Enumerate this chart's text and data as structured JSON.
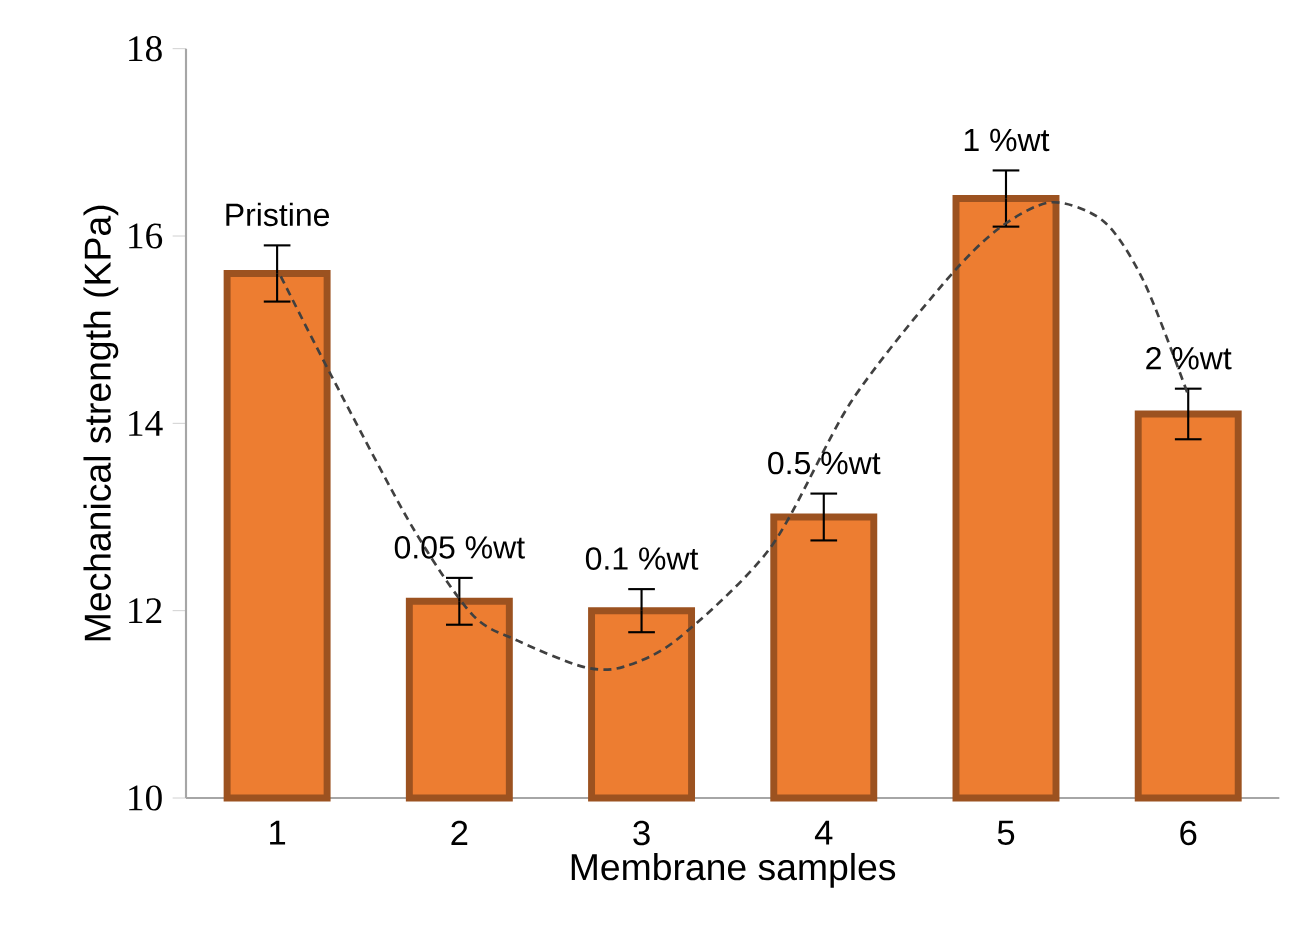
{
  "chart_data": {
    "type": "bar",
    "xlabel": "Membrane samples",
    "ylabel": "Mechanical strength (KPa)",
    "x": [
      1,
      2,
      3,
      4,
      5,
      6
    ],
    "xlim": [
      0.5,
      6.5
    ],
    "xticks": [
      1,
      2,
      3,
      4,
      5,
      6
    ],
    "ylim": [
      10,
      18
    ],
    "yticks": [
      10,
      12,
      14,
      16,
      18
    ],
    "series": [
      {
        "color": "#ed7d31",
        "values": [
          15.6,
          12.1,
          12.0,
          13.0,
          16.4,
          14.1
        ],
        "errors": [
          0.3,
          0.25,
          0.23,
          0.25,
          0.3,
          0.27
        ]
      },
      {
        "type": "line",
        "line_style": "dashed",
        "marker": "none",
        "color": "#404040",
        "x": [
          1.02,
          1.3,
          1.74,
          2.07,
          2.32,
          2.68,
          2.9,
          3.2,
          3.71,
          4.15,
          4.66,
          4.96,
          5.25,
          5.54,
          5.76,
          6.0
        ],
        "values": [
          15.57,
          14.5,
          12.9,
          11.96,
          11.68,
          11.4,
          11.4,
          11.7,
          12.68,
          14.23,
          15.5,
          16.08,
          16.36,
          16.15,
          15.5,
          14.3
        ]
      }
    ],
    "annotations": [
      "Pristine",
      "0.05 %wt",
      "0.1 %wt",
      "0.5 %wt",
      "1 %wt",
      "2 %wt"
    ]
  }
}
